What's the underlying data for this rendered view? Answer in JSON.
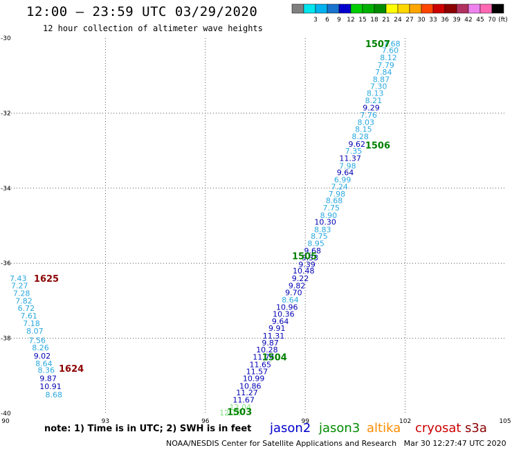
{
  "header": {
    "title": "12:00 – 23:59 UTC 03/29/2020",
    "subtitle": "12 hour collection of altimeter wave heights"
  },
  "colorbar": {
    "unit": "(ft)",
    "bins": [
      {
        "label": "",
        "color": "#7f7f7f"
      },
      {
        "label": "3",
        "color": "#00e5ee"
      },
      {
        "label": "6",
        "color": "#00b2ee"
      },
      {
        "label": "9",
        "color": "#1874cd"
      },
      {
        "label": "12",
        "color": "#0000cd"
      },
      {
        "label": "15",
        "color": "#00cd00"
      },
      {
        "label": "18",
        "color": "#00b000"
      },
      {
        "label": "21",
        "color": "#008b00"
      },
      {
        "label": "24",
        "color": "#ffff00"
      },
      {
        "label": "27",
        "color": "#ffd700"
      },
      {
        "label": "30",
        "color": "#ffa500"
      },
      {
        "label": "33",
        "color": "#ff4500"
      },
      {
        "label": "36",
        "color": "#cd0000"
      },
      {
        "label": "39",
        "color": "#8b0000"
      },
      {
        "label": "42",
        "color": "#b03060"
      },
      {
        "label": "45",
        "color": "#ee82ee"
      },
      {
        "label": "70",
        "color": "#ff69b4"
      },
      {
        "label": "",
        "color": "#000000"
      }
    ]
  },
  "footer": {
    "note": "note: 1) Time is in UTC; 2) SWH is in feet",
    "credit": "NOAA/NESDIS Center for Satellite Applications and Research   Mar 30 12:27:47 UTC 2020",
    "legend": [
      {
        "name": "jason2",
        "color": "#0000cd"
      },
      {
        "name": "jason3",
        "color": "#008b00"
      },
      {
        "name": "altika",
        "color": "#ff8c00"
      },
      {
        "name": "cryosat",
        "color": "#cd0000"
      },
      {
        "name": "s3a",
        "color": "#8b0000"
      }
    ]
  },
  "chart_data": {
    "type": "scatter",
    "xlim": [
      90,
      105
    ],
    "ylim": [
      -40,
      -30
    ],
    "xticks": [
      "90",
      "93",
      "96",
      "99",
      "102",
      "105"
    ],
    "yticks": [
      "-30",
      "-32",
      "-34",
      "-36",
      "-38",
      "-40"
    ],
    "grid": true,
    "colors": {
      "c": "#29a8e0",
      "b": "#0000b4",
      "g": "#7fe07f"
    },
    "passes": [
      {
        "label": "1507",
        "color": "#008000",
        "lx": 100.8,
        "ly": -30.15
      },
      {
        "label": "1506",
        "color": "#008000",
        "lx": 100.8,
        "ly": -32.85
      },
      {
        "label": "1505",
        "color": "#008000",
        "lx": 98.6,
        "ly": -35.8
      },
      {
        "label": "1504",
        "color": "#008000",
        "lx": 97.7,
        "ly": -38.5
      },
      {
        "label": "1503",
        "color": "#008000",
        "lx": 96.65,
        "ly": -39.95
      },
      {
        "label": "1625",
        "color": "#8b0000",
        "lx": 90.85,
        "ly": -36.4
      },
      {
        "label": "1624",
        "color": "#8b0000",
        "lx": 91.6,
        "ly": -38.8
      }
    ],
    "points": [
      {
        "x": 101.6,
        "y": -30.15,
        "v": "7.68",
        "c": "c"
      },
      {
        "x": 101.55,
        "y": -30.32,
        "v": "7.60",
        "c": "c"
      },
      {
        "x": 101.5,
        "y": -30.52,
        "v": "8.12",
        "c": "c"
      },
      {
        "x": 101.42,
        "y": -30.72,
        "v": "7.79",
        "c": "c"
      },
      {
        "x": 101.35,
        "y": -30.9,
        "v": "7.84",
        "c": "c"
      },
      {
        "x": 101.28,
        "y": -31.1,
        "v": "8.87",
        "c": "c"
      },
      {
        "x": 101.2,
        "y": -31.28,
        "v": "7.30",
        "c": "c"
      },
      {
        "x": 101.1,
        "y": -31.47,
        "v": "8.13",
        "c": "c"
      },
      {
        "x": 101.05,
        "y": -31.66,
        "v": "8.21",
        "c": "c"
      },
      {
        "x": 100.98,
        "y": -31.85,
        "v": "9.29",
        "c": "b"
      },
      {
        "x": 100.9,
        "y": -32.05,
        "v": "7.76",
        "c": "c"
      },
      {
        "x": 100.82,
        "y": -32.24,
        "v": "8.03",
        "c": "c"
      },
      {
        "x": 100.75,
        "y": -32.43,
        "v": "8.15",
        "c": "c"
      },
      {
        "x": 100.65,
        "y": -32.62,
        "v": "8.28",
        "c": "c"
      },
      {
        "x": 100.55,
        "y": -32.82,
        "v": "9.62",
        "c": "b"
      },
      {
        "x": 100.45,
        "y": -33.01,
        "v": "7.35",
        "c": "c"
      },
      {
        "x": 100.35,
        "y": -33.2,
        "v": "11.37",
        "c": "b"
      },
      {
        "x": 100.27,
        "y": -33.4,
        "v": "7.98",
        "c": "c"
      },
      {
        "x": 100.2,
        "y": -33.58,
        "v": "9.64",
        "c": "b"
      },
      {
        "x": 100.12,
        "y": -33.77,
        "v": "6.99",
        "c": "c"
      },
      {
        "x": 100.03,
        "y": -33.96,
        "v": "7.24",
        "c": "c"
      },
      {
        "x": 99.95,
        "y": -34.15,
        "v": "7.98",
        "c": "c"
      },
      {
        "x": 99.87,
        "y": -34.33,
        "v": "8.68",
        "c": "c"
      },
      {
        "x": 99.78,
        "y": -34.52,
        "v": "7.75",
        "c": "c"
      },
      {
        "x": 99.7,
        "y": -34.72,
        "v": "8.90",
        "c": "c"
      },
      {
        "x": 99.6,
        "y": -34.9,
        "v": "10.30",
        "b": 1,
        "c": "b"
      },
      {
        "x": 99.52,
        "y": -35.1,
        "v": "8.83",
        "c": "c"
      },
      {
        "x": 99.42,
        "y": -35.28,
        "v": "8.75",
        "c": "c"
      },
      {
        "x": 99.32,
        "y": -35.47,
        "v": "8.95",
        "c": "c"
      },
      {
        "x": 99.22,
        "y": -35.66,
        "v": "9.68",
        "c": "b"
      },
      {
        "x": 99.14,
        "y": -35.85,
        "v": "9.33",
        "c": "b"
      },
      {
        "x": 99.05,
        "y": -36.03,
        "v": "9.39",
        "c": "b"
      },
      {
        "x": 98.95,
        "y": -36.2,
        "v": "10.48",
        "c": "b"
      },
      {
        "x": 98.85,
        "y": -36.4,
        "v": "9.22",
        "c": "b"
      },
      {
        "x": 98.75,
        "y": -36.6,
        "v": "9.82",
        "c": "b"
      },
      {
        "x": 98.65,
        "y": -36.78,
        "v": "9.70",
        "c": "b"
      },
      {
        "x": 98.55,
        "y": -36.97,
        "v": "8.64",
        "c": "c"
      },
      {
        "x": 98.45,
        "y": -37.17,
        "v": "10.96",
        "c": "b"
      },
      {
        "x": 98.35,
        "y": -37.35,
        "v": "10.36",
        "c": "b"
      },
      {
        "x": 98.25,
        "y": -37.55,
        "v": "9.64",
        "c": "b"
      },
      {
        "x": 98.15,
        "y": -37.73,
        "v": "9.91",
        "c": "b"
      },
      {
        "x": 98.05,
        "y": -37.93,
        "v": "11.31",
        "c": "b"
      },
      {
        "x": 97.95,
        "y": -38.12,
        "v": "9.87",
        "c": "b"
      },
      {
        "x": 97.85,
        "y": -38.3,
        "v": "10.28",
        "c": "b"
      },
      {
        "x": 97.75,
        "y": -38.5,
        "v": "11.74",
        "c": "b"
      },
      {
        "x": 97.65,
        "y": -38.7,
        "v": "11.65",
        "c": "b"
      },
      {
        "x": 97.55,
        "y": -38.88,
        "v": "11.57",
        "c": "b"
      },
      {
        "x": 97.45,
        "y": -39.07,
        "v": "10.99",
        "c": "b"
      },
      {
        "x": 97.35,
        "y": -39.27,
        "v": "10.86",
        "c": "b"
      },
      {
        "x": 97.25,
        "y": -39.45,
        "v": "11.27",
        "c": "b"
      },
      {
        "x": 97.15,
        "y": -39.64,
        "v": "11.67",
        "c": "b"
      },
      {
        "x": 97.05,
        "y": -39.83,
        "v": "12.04",
        "c": "g"
      },
      {
        "x": 96.75,
        "y": -39.98,
        "v": "12.18",
        "c": "g"
      },
      {
        "x": 90.38,
        "y": -36.4,
        "v": "7.43",
        "c": "c"
      },
      {
        "x": 90.42,
        "y": -36.6,
        "v": "7.27",
        "c": "c"
      },
      {
        "x": 90.48,
        "y": -36.8,
        "v": "7.28",
        "c": "c"
      },
      {
        "x": 90.55,
        "y": -37.0,
        "v": "7.82",
        "c": "c"
      },
      {
        "x": 90.62,
        "y": -37.2,
        "v": "6.72",
        "c": "c"
      },
      {
        "x": 90.7,
        "y": -37.4,
        "v": "7.61",
        "c": "c"
      },
      {
        "x": 90.78,
        "y": -37.6,
        "v": "7.18",
        "c": "c"
      },
      {
        "x": 90.88,
        "y": -37.8,
        "v": "8.07",
        "c": "c"
      },
      {
        "x": 90.95,
        "y": -38.05,
        "v": "7.56",
        "c": "c"
      },
      {
        "x": 91.05,
        "y": -38.25,
        "v": "8.26",
        "c": "c"
      },
      {
        "x": 91.1,
        "y": -38.47,
        "v": "9.02",
        "c": "b"
      },
      {
        "x": 91.15,
        "y": -38.67,
        "v": "8.64",
        "c": "c"
      },
      {
        "x": 91.22,
        "y": -38.85,
        "v": "8.36",
        "c": "c"
      },
      {
        "x": 91.28,
        "y": -39.07,
        "v": "9.87",
        "c": "b"
      },
      {
        "x": 91.35,
        "y": -39.28,
        "v": "10.91",
        "c": "b"
      },
      {
        "x": 91.45,
        "y": -39.5,
        "v": "8.68",
        "c": "c"
      }
    ]
  }
}
